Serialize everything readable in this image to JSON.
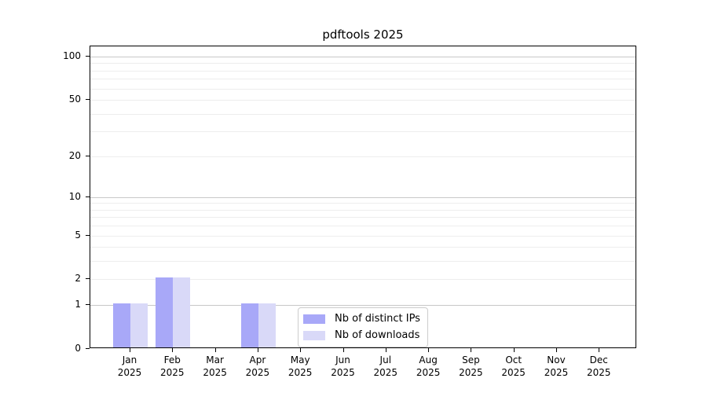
{
  "chart_data": {
    "type": "bar",
    "title": "pdftools 2025",
    "x_months": [
      "Jan",
      "Feb",
      "Mar",
      "Apr",
      "May",
      "Jun",
      "Jul",
      "Aug",
      "Sep",
      "Oct",
      "Nov",
      "Dec"
    ],
    "x_year": "2025",
    "series": [
      {
        "name": "Nb of distinct IPs",
        "color": "#a8a8f8",
        "values": [
          1,
          2,
          0,
          1,
          0,
          0,
          0,
          0,
          0,
          0,
          0,
          0
        ]
      },
      {
        "name": "Nb of downloads",
        "color": "#d9d9f8",
        "values": [
          1,
          2,
          0,
          1,
          0,
          0,
          0,
          0,
          0,
          0,
          0,
          0
        ]
      }
    ],
    "yscale": "log1p",
    "ylim": [
      0,
      118
    ],
    "yticks": [
      0,
      1,
      2,
      5,
      10,
      20,
      50,
      100
    ],
    "grid": "both",
    "grid_major_lines": [
      1,
      10,
      100
    ],
    "grid_minor_lines": [
      2,
      3,
      4,
      5,
      6,
      7,
      8,
      9,
      20,
      30,
      40,
      50,
      60,
      70,
      80,
      90
    ],
    "grid_major_color": "#c8c8c8",
    "grid_minor_color": "#ededed",
    "legend_position": "lower center"
  }
}
